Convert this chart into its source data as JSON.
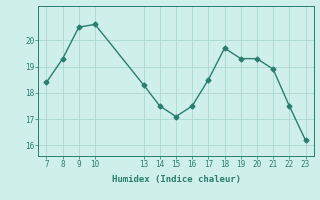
{
  "x": [
    7,
    8,
    9,
    10,
    13,
    14,
    15,
    16,
    17,
    18,
    19,
    20,
    21,
    22,
    23
  ],
  "y": [
    18.4,
    19.3,
    20.5,
    20.6,
    18.3,
    17.5,
    17.1,
    17.5,
    18.5,
    19.7,
    19.3,
    19.3,
    18.9,
    17.5,
    16.2
  ],
  "xticks": [
    7,
    8,
    9,
    10,
    13,
    14,
    15,
    16,
    17,
    18,
    19,
    20,
    21,
    22,
    23
  ],
  "yticks": [
    16,
    17,
    18,
    19,
    20
  ],
  "ylim": [
    15.6,
    21.3
  ],
  "xlim": [
    6.5,
    23.5
  ],
  "xlabel": "Humidex (Indice chaleur)",
  "line_color": "#2a7d6f",
  "marker": "D",
  "marker_size": 2.5,
  "bg_color": "#cff0ea",
  "grid_color": "#aad9d0",
  "tick_color": "#2a7d6f",
  "label_color": "#2a7d6f"
}
